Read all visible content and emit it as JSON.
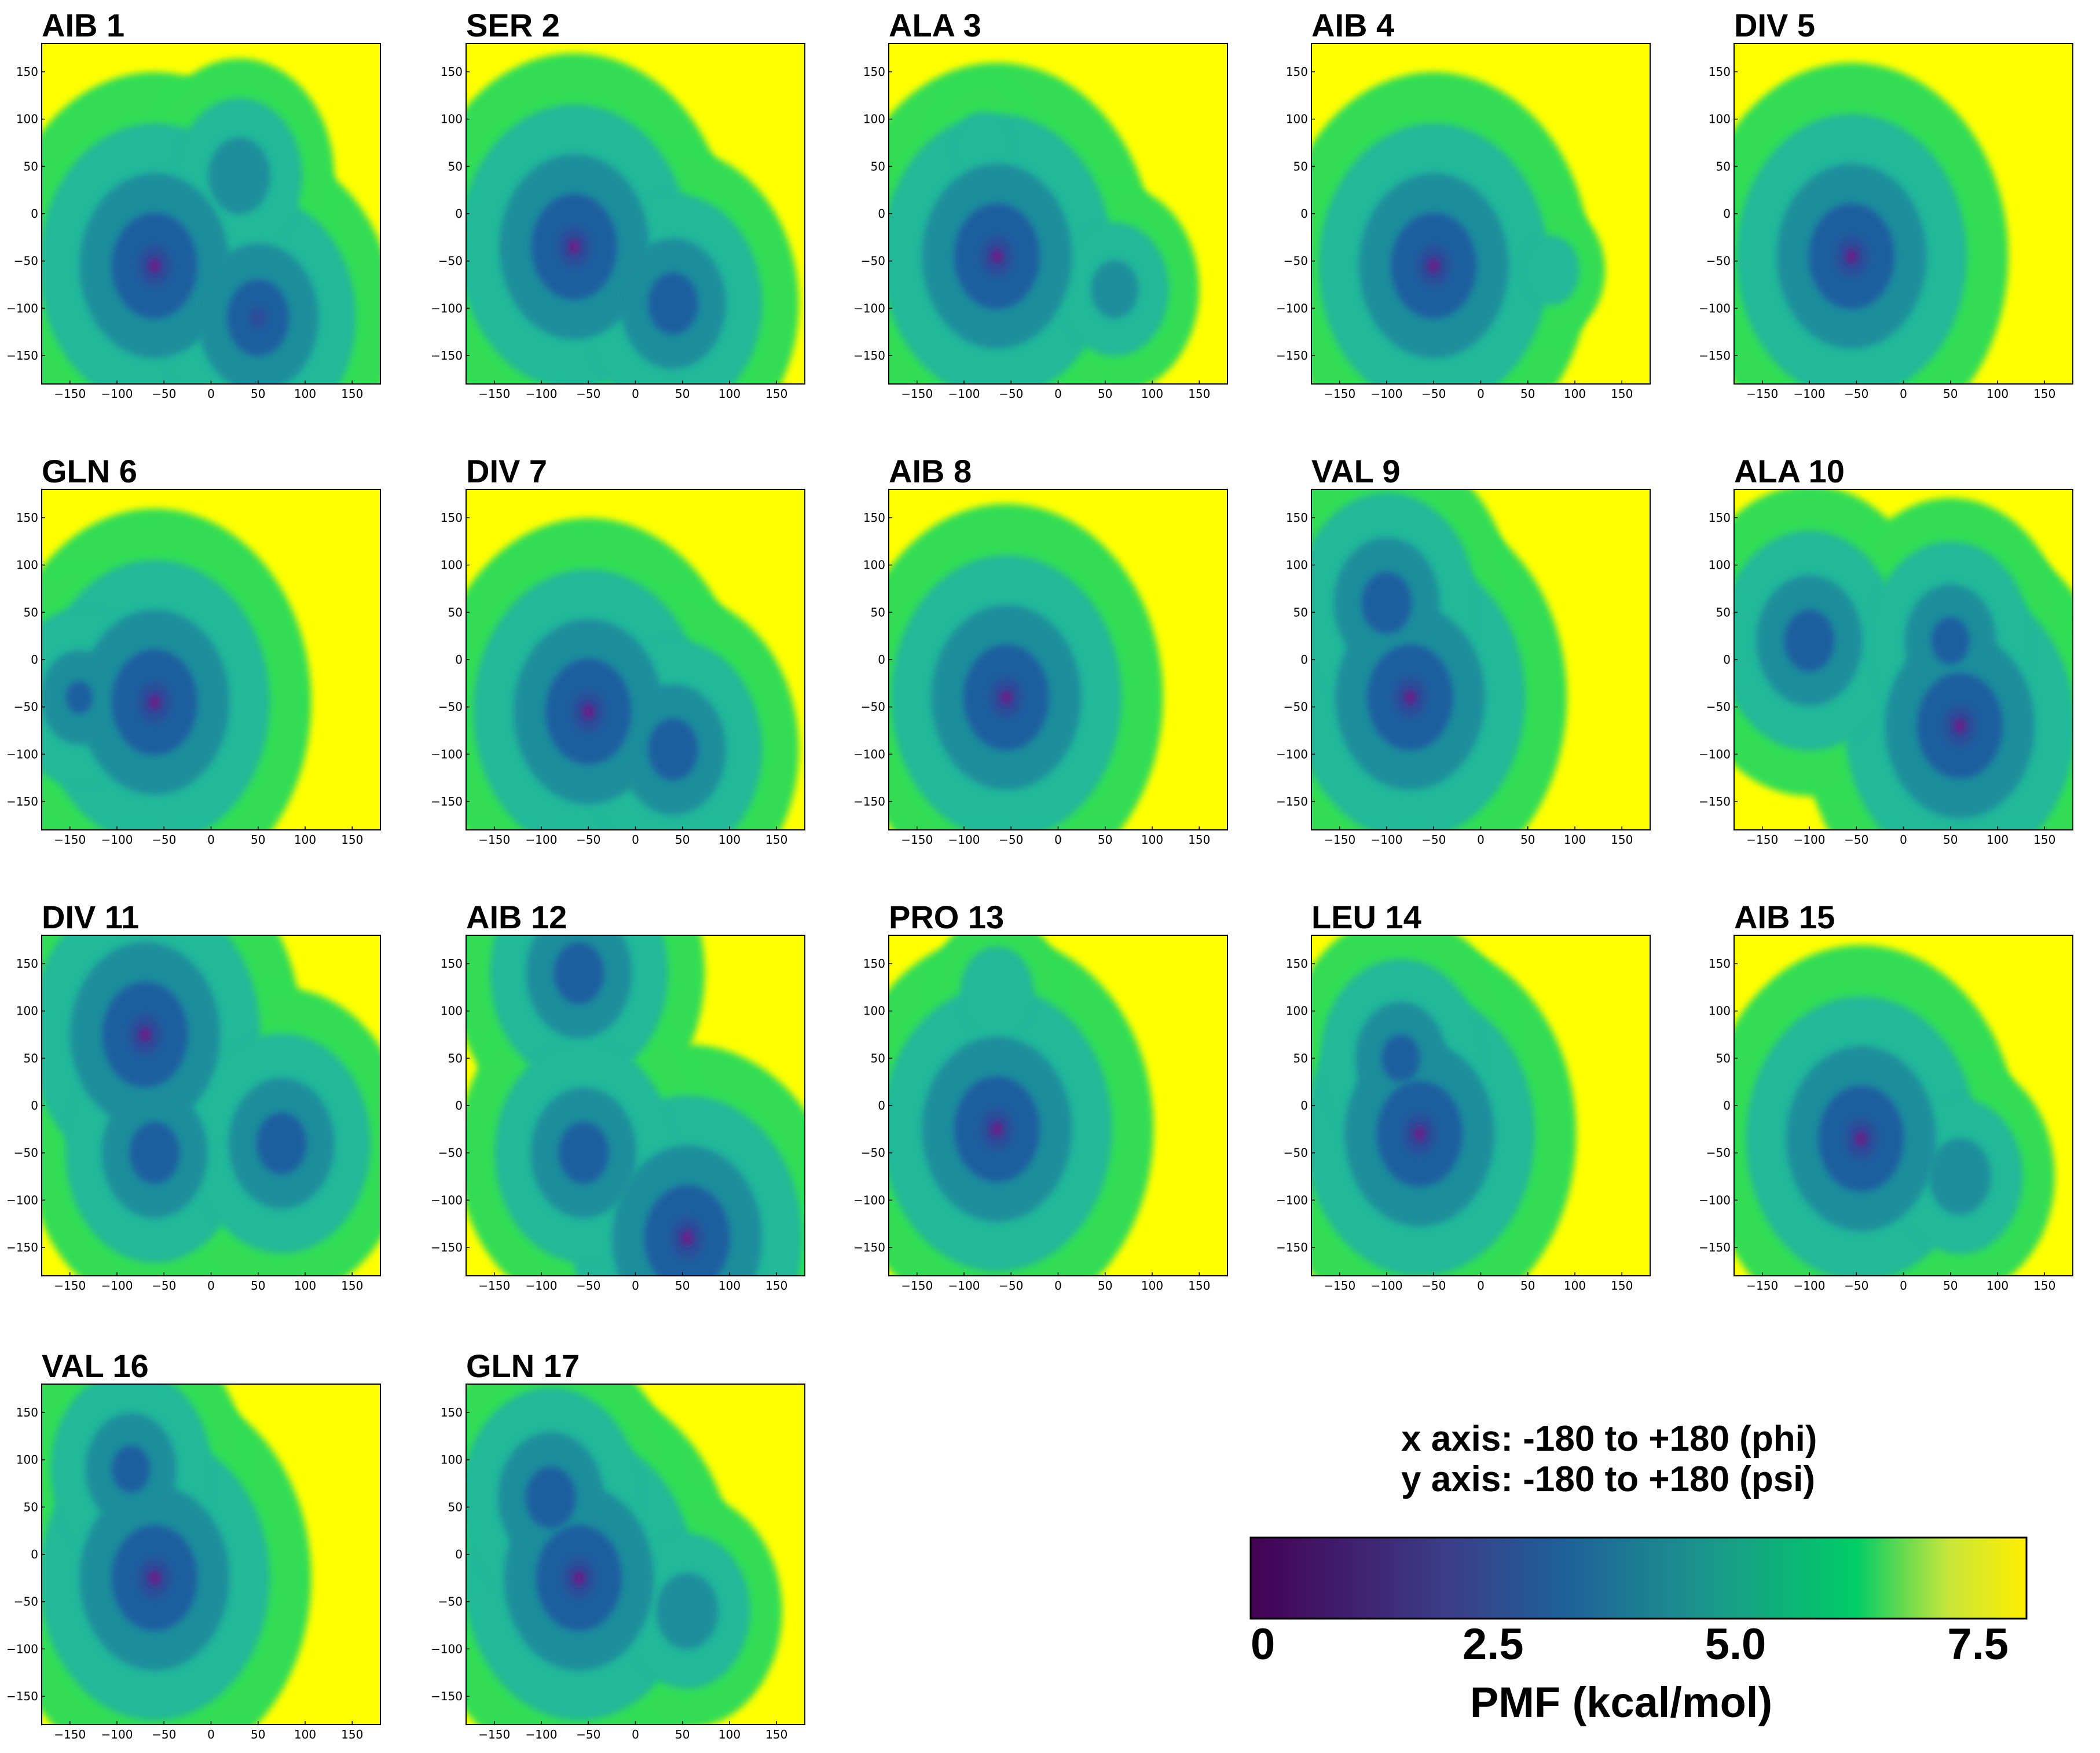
{
  "figure": {
    "axis_note_x": "x axis: -180 to +180 (phi)",
    "axis_note_y": "y axis: -180 to +180 (psi)",
    "colorbar": {
      "label": "PMF (kcal/mol)",
      "ticks": [
        "0",
        "2.5",
        "5.0",
        "7.5"
      ],
      "tick_values": [
        0,
        2.5,
        5.0,
        7.5
      ],
      "range": [
        0,
        8
      ],
      "colors": [
        "#440154",
        "#3b528b",
        "#21918c",
        "#00cc66",
        "#fde725",
        "#ffff00"
      ]
    }
  },
  "chart_data": [
    {
      "type": "heatmap",
      "title": "AIB 1",
      "xlabel": "phi",
      "ylabel": "psi",
      "xlim": [
        -180,
        180
      ],
      "ylim": [
        -180,
        180
      ],
      "xticks": [
        "−150",
        "−100",
        "−50",
        "0",
        "50",
        "100",
        "150"
      ],
      "yticks": [
        "150",
        "100",
        "50",
        "0",
        "−50",
        "−100",
        "−150"
      ],
      "wells": [
        {
          "phi": -60,
          "psi": -55,
          "pmf_min": 0.5
        },
        {
          "phi": 50,
          "psi": -110,
          "pmf_min": 1.5
        },
        {
          "phi": 30,
          "psi": 40,
          "pmf_min": 3.5
        }
      ]
    },
    {
      "type": "heatmap",
      "title": "SER 2",
      "xlabel": "phi",
      "ylabel": "psi",
      "xlim": [
        -180,
        180
      ],
      "ylim": [
        -180,
        180
      ],
      "xticks": [
        "−150",
        "−100",
        "−50",
        "0",
        "50",
        "100",
        "150"
      ],
      "yticks": [
        "150",
        "100",
        "50",
        "0",
        "−50",
        "−100",
        "−150"
      ],
      "wells": [
        {
          "phi": -65,
          "psi": -35,
          "pmf_min": 0.5
        },
        {
          "phi": 40,
          "psi": -95,
          "pmf_min": 2.0
        }
      ]
    },
    {
      "type": "heatmap",
      "title": "ALA 3",
      "xlabel": "phi",
      "ylabel": "psi",
      "xlim": [
        -180,
        180
      ],
      "ylim": [
        -180,
        180
      ],
      "xticks": [
        "−150",
        "−100",
        "−50",
        "0",
        "50",
        "100",
        "150"
      ],
      "yticks": [
        "150",
        "100",
        "50",
        "0",
        "−50",
        "−100",
        "−150"
      ],
      "wells": [
        {
          "phi": -65,
          "psi": -45,
          "pmf_min": 0.5
        },
        {
          "phi": 60,
          "psi": -80,
          "pmf_min": 4.0
        },
        {
          "phi": -80,
          "psi": 70,
          "pmf_min": 5.5
        }
      ]
    },
    {
      "type": "heatmap",
      "title": "AIB 4",
      "xlabel": "phi",
      "ylabel": "psi",
      "xlim": [
        -180,
        180
      ],
      "ylim": [
        -180,
        180
      ],
      "xticks": [
        "−150",
        "−100",
        "−50",
        "0",
        "50",
        "100",
        "150"
      ],
      "yticks": [
        "150",
        "100",
        "50",
        "0",
        "−50",
        "−100",
        "−150"
      ],
      "wells": [
        {
          "phi": -50,
          "psi": -55,
          "pmf_min": 0.5
        },
        {
          "phi": 75,
          "psi": -60,
          "pmf_min": 5.5
        }
      ]
    },
    {
      "type": "heatmap",
      "title": "DIV 5",
      "xlabel": "phi",
      "ylabel": "psi",
      "xlim": [
        -180,
        180
      ],
      "ylim": [
        -180,
        180
      ],
      "xticks": [
        "−150",
        "−100",
        "−50",
        "0",
        "50",
        "100",
        "150"
      ],
      "yticks": [
        "150",
        "100",
        "50",
        "0",
        "−50",
        "−100",
        "−150"
      ],
      "wells": [
        {
          "phi": -55,
          "psi": -45,
          "pmf_min": 0.5
        }
      ]
    },
    {
      "type": "heatmap",
      "title": "GLN 6",
      "xlabel": "phi",
      "ylabel": "psi",
      "xlim": [
        -180,
        180
      ],
      "ylim": [
        -180,
        180
      ],
      "xticks": [
        "−150",
        "−100",
        "−50",
        "0",
        "50",
        "100",
        "150"
      ],
      "yticks": [
        "150",
        "100",
        "50",
        "0",
        "−50",
        "−100",
        "−150"
      ],
      "wells": [
        {
          "phi": -60,
          "psi": -45,
          "pmf_min": 0.5
        },
        {
          "phi": -140,
          "psi": -40,
          "pmf_min": 3.0
        }
      ]
    },
    {
      "type": "heatmap",
      "title": "DIV 7",
      "xlabel": "phi",
      "ylabel": "psi",
      "xlim": [
        -180,
        180
      ],
      "ylim": [
        -180,
        180
      ],
      "xticks": [
        "−150",
        "−100",
        "−50",
        "0",
        "50",
        "100",
        "150"
      ],
      "yticks": [
        "150",
        "100",
        "50",
        "0",
        "−50",
        "−100",
        "−150"
      ],
      "wells": [
        {
          "phi": -50,
          "psi": -55,
          "pmf_min": 0.5
        },
        {
          "phi": 40,
          "psi": -95,
          "pmf_min": 2.0
        }
      ]
    },
    {
      "type": "heatmap",
      "title": "AIB 8",
      "xlabel": "phi",
      "ylabel": "psi",
      "xlim": [
        -180,
        180
      ],
      "ylim": [
        -180,
        180
      ],
      "xticks": [
        "−150",
        "−100",
        "−50",
        "0",
        "50",
        "100",
        "150"
      ],
      "yticks": [
        "150",
        "100",
        "50",
        "0",
        "−50",
        "−100",
        "−150"
      ],
      "wells": [
        {
          "phi": -55,
          "psi": -40,
          "pmf_min": 0.5
        }
      ]
    },
    {
      "type": "heatmap",
      "title": "VAL 9",
      "xlabel": "phi",
      "ylabel": "psi",
      "xlim": [
        -180,
        180
      ],
      "ylim": [
        -180,
        180
      ],
      "xticks": [
        "−150",
        "−100",
        "−50",
        "0",
        "50",
        "100",
        "150"
      ],
      "yticks": [
        "150",
        "100",
        "50",
        "0",
        "−50",
        "−100",
        "−150"
      ],
      "wells": [
        {
          "phi": -75,
          "psi": -40,
          "pmf_min": 0.5
        },
        {
          "phi": -100,
          "psi": 60,
          "pmf_min": 2.0
        }
      ]
    },
    {
      "type": "heatmap",
      "title": "ALA 10",
      "xlabel": "phi",
      "ylabel": "psi",
      "xlim": [
        -180,
        180
      ],
      "ylim": [
        -180,
        180
      ],
      "xticks": [
        "−150",
        "−100",
        "−50",
        "0",
        "50",
        "100",
        "150"
      ],
      "yticks": [
        "150",
        "100",
        "50",
        "0",
        "−50",
        "−100",
        "−150"
      ],
      "wells": [
        {
          "phi": 60,
          "psi": -70,
          "pmf_min": 0.5
        },
        {
          "phi": -100,
          "psi": 20,
          "pmf_min": 2.0
        },
        {
          "phi": 50,
          "psi": 20,
          "pmf_min": 2.5
        }
      ]
    },
    {
      "type": "heatmap",
      "title": "DIV 11",
      "xlabel": "phi",
      "ylabel": "psi",
      "xlim": [
        -180,
        180
      ],
      "ylim": [
        -180,
        180
      ],
      "xticks": [
        "−150",
        "−100",
        "−50",
        "0",
        "50",
        "100",
        "150"
      ],
      "yticks": [
        "150",
        "100",
        "50",
        "0",
        "−50",
        "−100",
        "−150"
      ],
      "wells": [
        {
          "phi": -70,
          "psi": 75,
          "pmf_min": 0.5
        },
        {
          "phi": -60,
          "psi": -50,
          "pmf_min": 2.0
        },
        {
          "phi": 75,
          "psi": -40,
          "pmf_min": 2.0
        }
      ]
    },
    {
      "type": "heatmap",
      "title": "AIB 12",
      "xlabel": "phi",
      "ylabel": "psi",
      "xlim": [
        -180,
        180
      ],
      "ylim": [
        -180,
        180
      ],
      "xticks": [
        "−150",
        "−100",
        "−50",
        "0",
        "50",
        "100",
        "150"
      ],
      "yticks": [
        "150",
        "100",
        "50",
        "0",
        "−50",
        "−100",
        "−150"
      ],
      "wells": [
        {
          "phi": 55,
          "psi": -140,
          "pmf_min": 0.5
        },
        {
          "phi": -60,
          "psi": 140,
          "pmf_min": 2.0
        },
        {
          "phi": -55,
          "psi": -50,
          "pmf_min": 2.0
        }
      ]
    },
    {
      "type": "heatmap",
      "title": "PRO 13",
      "xlabel": "phi",
      "ylabel": "psi",
      "xlim": [
        -180,
        180
      ],
      "ylim": [
        -180,
        180
      ],
      "xticks": [
        "−150",
        "−100",
        "−50",
        "0",
        "50",
        "100",
        "150"
      ],
      "yticks": [
        "150",
        "100",
        "50",
        "0",
        "−50",
        "−100",
        "−150"
      ],
      "wells": [
        {
          "phi": -65,
          "psi": -25,
          "pmf_min": 0.5
        },
        {
          "phi": -65,
          "psi": 120,
          "pmf_min": 5.0
        }
      ]
    },
    {
      "type": "heatmap",
      "title": "LEU 14",
      "xlabel": "phi",
      "ylabel": "psi",
      "xlim": [
        -180,
        180
      ],
      "ylim": [
        -180,
        180
      ],
      "xticks": [
        "−150",
        "−100",
        "−50",
        "0",
        "50",
        "100",
        "150"
      ],
      "yticks": [
        "150",
        "100",
        "50",
        "0",
        "−50",
        "−100",
        "−150"
      ],
      "wells": [
        {
          "phi": -65,
          "psi": -30,
          "pmf_min": 0.5
        },
        {
          "phi": -85,
          "psi": 50,
          "pmf_min": 2.5
        }
      ]
    },
    {
      "type": "heatmap",
      "title": "AIB 15",
      "xlabel": "phi",
      "ylabel": "psi",
      "xlim": [
        -180,
        180
      ],
      "ylim": [
        -180,
        180
      ],
      "xticks": [
        "−150",
        "−100",
        "−50",
        "0",
        "50",
        "100",
        "150"
      ],
      "yticks": [
        "150",
        "100",
        "50",
        "0",
        "−50",
        "−100",
        "−150"
      ],
      "wells": [
        {
          "phi": -45,
          "psi": -35,
          "pmf_min": 0.5
        },
        {
          "phi": 60,
          "psi": -75,
          "pmf_min": 3.5
        }
      ]
    },
    {
      "type": "heatmap",
      "title": "VAL 16",
      "xlabel": "phi",
      "ylabel": "psi",
      "xlim": [
        -180,
        180
      ],
      "ylim": [
        -180,
        180
      ],
      "xticks": [
        "−150",
        "−100",
        "−50",
        "0",
        "50",
        "100",
        "150"
      ],
      "yticks": [
        "150",
        "100",
        "50",
        "0",
        "−50",
        "−100",
        "−150"
      ],
      "wells": [
        {
          "phi": -60,
          "psi": -25,
          "pmf_min": 0.5
        },
        {
          "phi": -85,
          "psi": 90,
          "pmf_min": 2.5
        }
      ]
    },
    {
      "type": "heatmap",
      "title": "GLN 17",
      "xlabel": "phi",
      "ylabel": "psi",
      "xlim": [
        -180,
        180
      ],
      "ylim": [
        -180,
        180
      ],
      "xticks": [
        "−150",
        "−100",
        "−50",
        "0",
        "50",
        "100",
        "150"
      ],
      "yticks": [
        "150",
        "100",
        "50",
        "0",
        "−50",
        "−100",
        "−150"
      ],
      "wells": [
        {
          "phi": -60,
          "psi": -25,
          "pmf_min": 0.5
        },
        {
          "phi": -90,
          "psi": 60,
          "pmf_min": 2.0
        },
        {
          "phi": 55,
          "psi": -60,
          "pmf_min": 3.5
        }
      ]
    }
  ]
}
